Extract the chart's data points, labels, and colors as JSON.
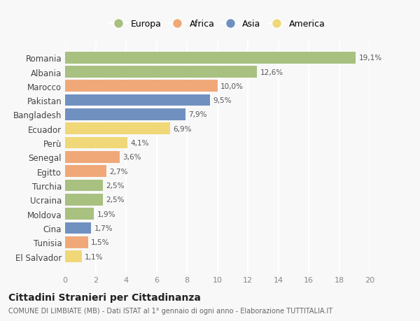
{
  "countries": [
    "Romania",
    "Albania",
    "Marocco",
    "Pakistan",
    "Bangladesh",
    "Ecuador",
    "Perù",
    "Senegal",
    "Egitto",
    "Turchia",
    "Ucraina",
    "Moldova",
    "Cina",
    "Tunisia",
    "El Salvador"
  ],
  "values": [
    19.1,
    12.6,
    10.0,
    9.5,
    7.9,
    6.9,
    4.1,
    3.6,
    2.7,
    2.5,
    2.5,
    1.9,
    1.7,
    1.5,
    1.1
  ],
  "labels": [
    "19,1%",
    "12,6%",
    "10,0%",
    "9,5%",
    "7,9%",
    "6,9%",
    "4,1%",
    "3,6%",
    "2,7%",
    "2,5%",
    "2,5%",
    "1,9%",
    "1,7%",
    "1,5%",
    "1,1%"
  ],
  "continents": [
    "Europa",
    "Europa",
    "Africa",
    "Asia",
    "Asia",
    "America",
    "America",
    "Africa",
    "Africa",
    "Europa",
    "Europa",
    "Europa",
    "Asia",
    "Africa",
    "America"
  ],
  "continent_colors": {
    "Europa": "#a8c080",
    "Africa": "#f0a878",
    "Asia": "#7090c0",
    "America": "#f0d878"
  },
  "legend_order": [
    "Europa",
    "Africa",
    "Asia",
    "America"
  ],
  "title": "Cittadini Stranieri per Cittadinanza",
  "subtitle": "COMUNE DI LIMBIATE (MB) - Dati ISTAT al 1° gennaio di ogni anno - Elaborazione TUTTITALIA.IT",
  "xlim": [
    0,
    20
  ],
  "xticks": [
    0,
    2,
    4,
    6,
    8,
    10,
    12,
    14,
    16,
    18,
    20
  ],
  "bg_color": "#f8f8f8",
  "grid_color": "#e8e8e8",
  "bar_height": 0.82
}
